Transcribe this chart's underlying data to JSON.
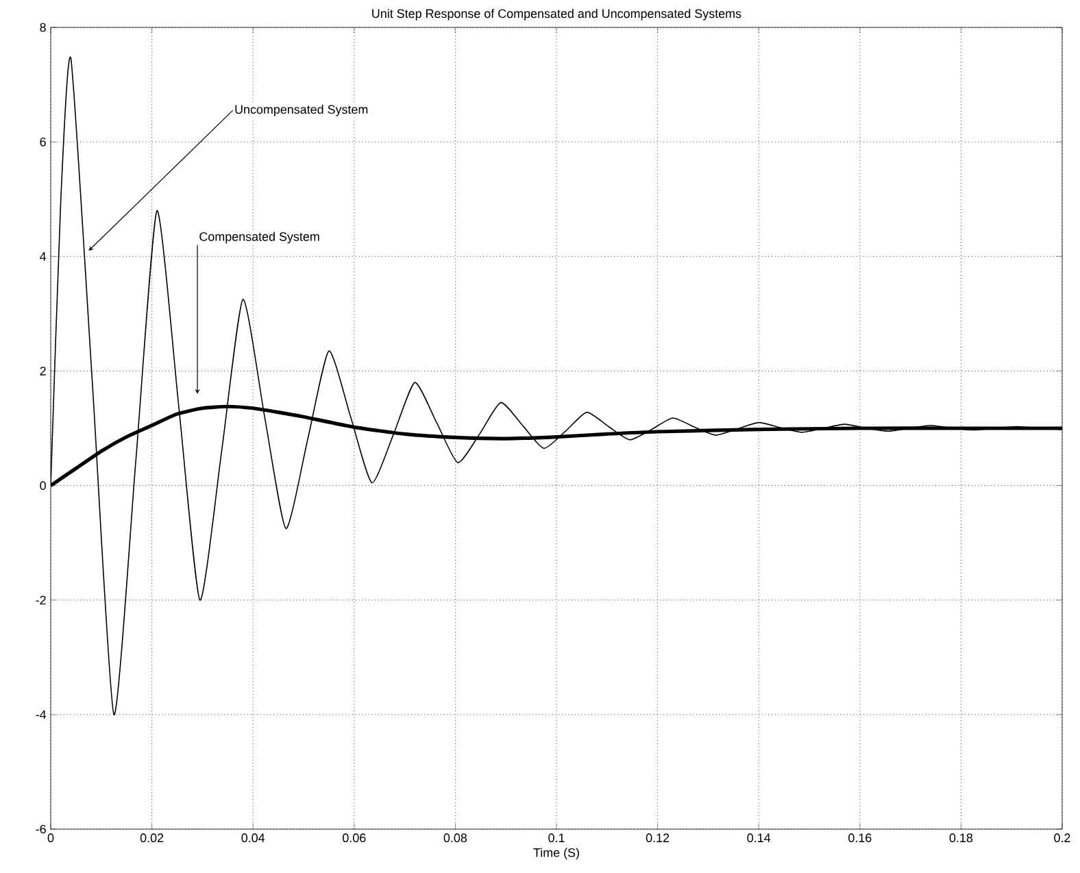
{
  "chart_data": {
    "type": "line",
    "title": "Unit Step Response of Compensated and Uncompensated Systems",
    "xlabel": "Time (S)",
    "xlim": [
      0,
      0.2
    ],
    "ylim": [
      -6,
      8
    ],
    "xticks": [
      0,
      0.02,
      0.04,
      0.06,
      0.08,
      0.1,
      0.12,
      0.14,
      0.16,
      0.18,
      0.2
    ],
    "yticks": [
      -6,
      -4,
      -2,
      0,
      2,
      4,
      6,
      8
    ],
    "grid": true,
    "marker": "none",
    "series": [
      {
        "color": "#000000",
        "line_style": "solid",
        "x": [
          0,
          0.002,
          0.004,
          0.0083,
          0.0125,
          0.0168,
          0.021,
          0.0253,
          0.0295,
          0.0338,
          0.038,
          0.0423,
          0.0465,
          0.0508,
          0.055,
          0.0593,
          0.0635,
          0.0678,
          0.072,
          0.0763,
          0.0805,
          0.0848,
          0.089,
          0.0933,
          0.0975,
          0.1018,
          0.106,
          0.1103,
          0.1145,
          0.1188,
          0.123,
          0.1273,
          0.1315,
          0.1358,
          0.14,
          0.1443,
          0.1485,
          0.1528,
          0.157,
          0.1613,
          0.1655,
          0.1698,
          0.174,
          0.1783,
          0.1825,
          0.1868,
          0.191,
          0.1953,
          0.1995,
          0.2
        ],
        "values": [
          0,
          5,
          7.45,
          1.7,
          -4,
          0.4,
          4.8,
          1.4,
          -2,
          0.6,
          3.25,
          1.2,
          -0.75,
          0.8,
          2.35,
          1.2,
          0.05,
          0.9,
          1.8,
          1.1,
          0.4,
          0.9,
          1.45,
          1.05,
          0.65,
          0.95,
          1.28,
          1.03,
          0.8,
          0.98,
          1.18,
          1.02,
          0.88,
          0.99,
          1.1,
          1.01,
          0.93,
          1,
          1.07,
          1,
          0.95,
          1,
          1.05,
          1,
          0.97,
          1,
          1.03,
          1,
          0.98,
          0.99
        ]
      },
      {
        "color": "#000000",
        "line_style": "solid",
        "x": [
          0,
          0.005,
          0.01,
          0.015,
          0.02,
          0.025,
          0.03,
          0.035,
          0.04,
          0.045,
          0.05,
          0.06,
          0.07,
          0.08,
          0.09,
          0.1,
          0.11,
          0.12,
          0.14,
          0.16,
          0.18,
          0.2
        ],
        "values": [
          0,
          0.3,
          0.6,
          0.85,
          1.05,
          1.25,
          1.35,
          1.38,
          1.35,
          1.28,
          1.2,
          1.02,
          0.9,
          0.84,
          0.82,
          0.85,
          0.9,
          0.94,
          0.98,
          1,
          1,
          1
        ]
      }
    ],
    "annotations": [
      {
        "text": "Uncompensated System",
        "x": 0.0075,
        "y": 4.1
      },
      {
        "text": "Compensated System",
        "x": 0.029,
        "y": 1.6
      }
    ]
  }
}
